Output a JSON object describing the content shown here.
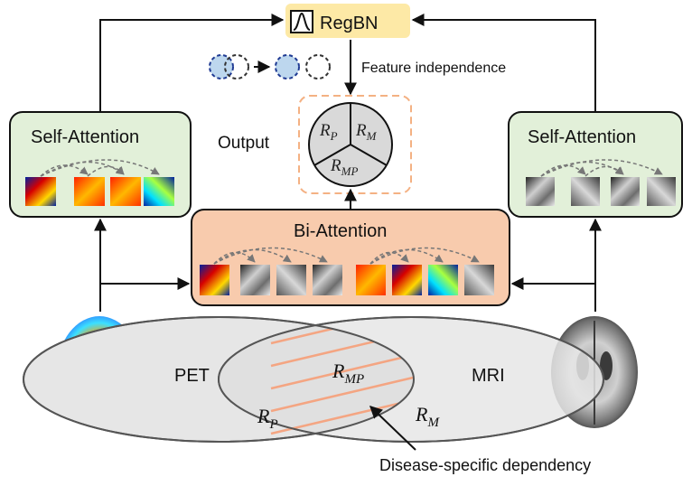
{
  "regbn": {
    "label": "RegBN",
    "icon": "bell-curve-icon"
  },
  "feature_independence": "Feature independence",
  "output_label": "Output",
  "output_pie": {
    "top_left": {
      "base": "R",
      "sub": "P"
    },
    "top_right": {
      "base": "R",
      "sub": "M"
    },
    "bottom": {
      "base": "R",
      "sub": "MP"
    }
  },
  "self_attention_left": {
    "title": "Self-Attention"
  },
  "self_attention_right": {
    "title": "Self-Attention"
  },
  "bi_attention": {
    "title": "Bi-Attention"
  },
  "venn": {
    "left_label": "PET",
    "right_label": "MRI",
    "left_region": {
      "base": "R",
      "sub": "P"
    },
    "right_region": {
      "base": "R",
      "sub": "M"
    },
    "center_region": {
      "base": "R",
      "sub": "MP"
    }
  },
  "disease_specific": "Disease-specific dependency",
  "colors": {
    "regbn_fill": "#fde9a6",
    "self_attention_fill": "#e2f0d9",
    "bi_attention_fill": "#f8cbad",
    "output_border": "#f4b183",
    "venn_fill": "#e6e6e6",
    "hatch": "#f4a582",
    "circle_fill": "#bdd7ee",
    "circle_stroke": "#1f3a93"
  }
}
